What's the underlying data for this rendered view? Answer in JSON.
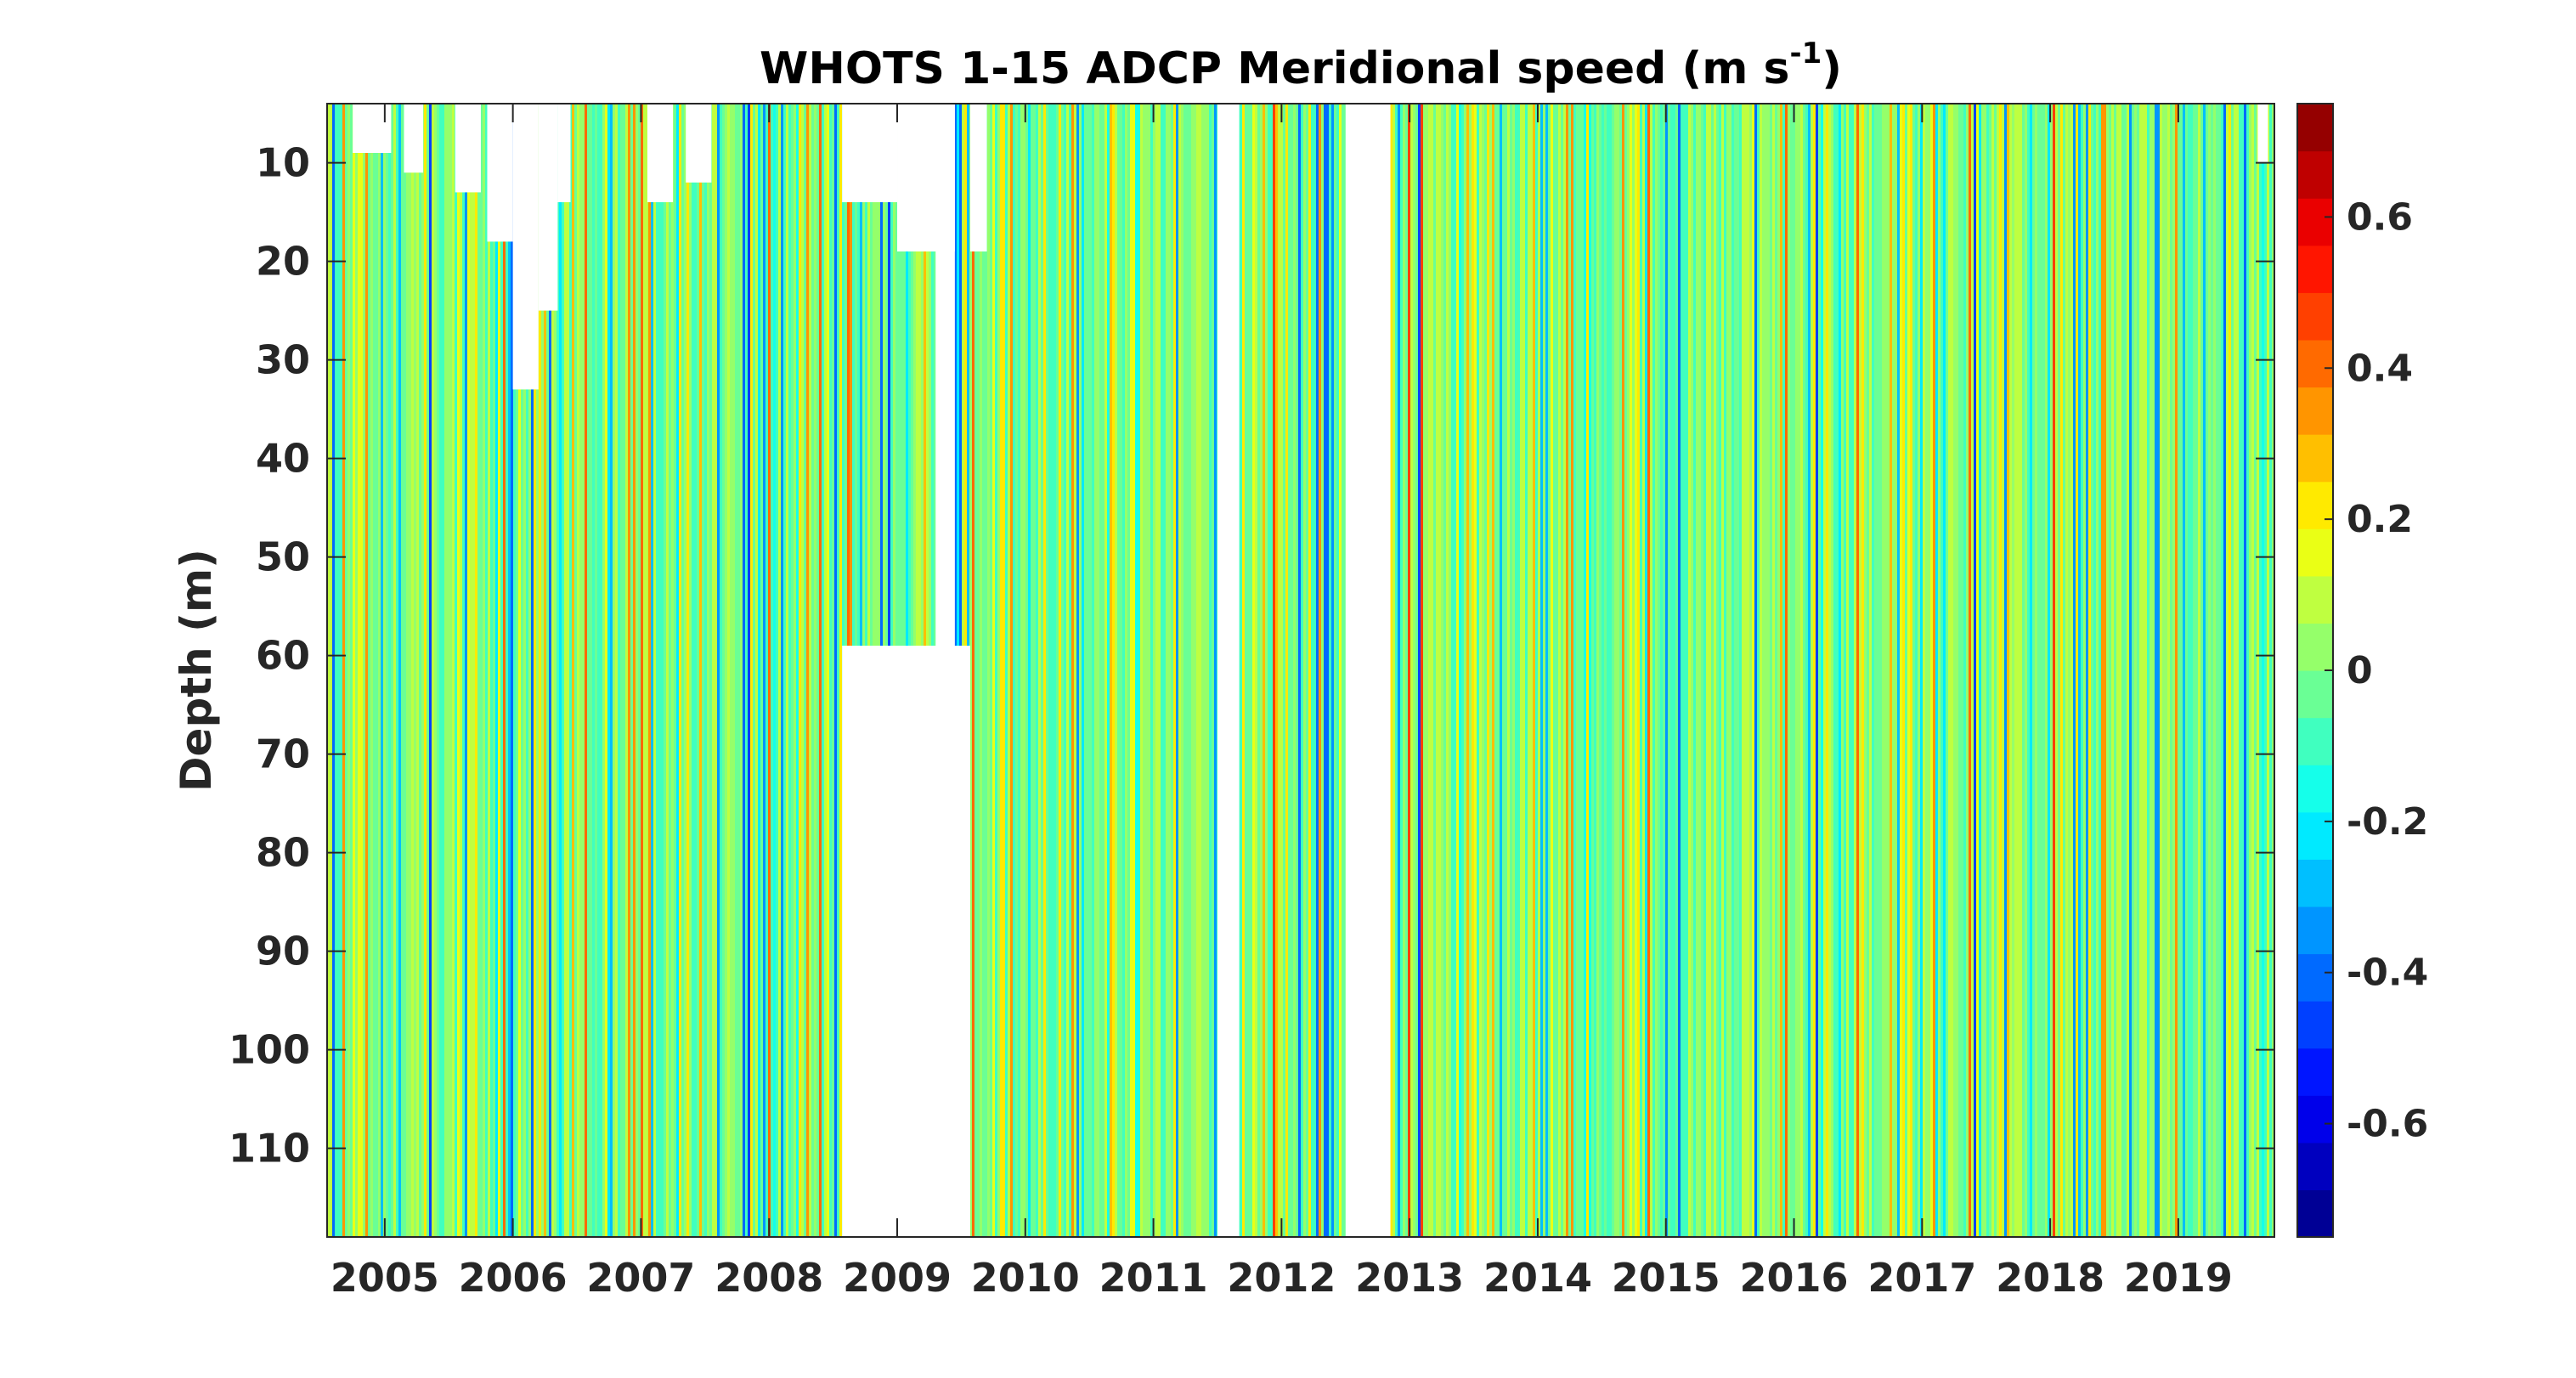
{
  "chart_data": {
    "type": "heatmap",
    "title_main": "WHOTS 1-15 ADCP Meridional speed (m s",
    "title_sup": "-1",
    "title_end": ")",
    "ylabel": "Depth (m)",
    "xlabel": "",
    "x_range_years": [
      2004.55,
      2019.75
    ],
    "y_range_m": [
      4,
      119
    ],
    "y_reversed": true,
    "x_ticks": [
      "2005",
      "2006",
      "2007",
      "2008",
      "2009",
      "2010",
      "2011",
      "2012",
      "2013",
      "2014",
      "2015",
      "2016",
      "2017",
      "2018",
      "2019"
    ],
    "x_tick_values": [
      2005,
      2006,
      2007,
      2008,
      2009,
      2010,
      2011,
      2012,
      2013,
      2014,
      2015,
      2016,
      2017,
      2018,
      2019
    ],
    "y_ticks": [
      "10",
      "20",
      "30",
      "40",
      "50",
      "60",
      "70",
      "80",
      "90",
      "100",
      "110"
    ],
    "y_tick_values": [
      10,
      20,
      30,
      40,
      50,
      60,
      70,
      80,
      90,
      100,
      110
    ],
    "colorbar": {
      "colormap": "jet",
      "range": [
        -0.75,
        0.75
      ],
      "levels": 24,
      "ticks": [
        "0.6",
        "0.4",
        "0.2",
        "0",
        "-0.2",
        "-0.4",
        "-0.6"
      ],
      "tick_values": [
        0.6,
        0.4,
        0.2,
        0,
        -0.2,
        -0.4,
        -0.6
      ]
    },
    "data_gaps": [
      {
        "x_start": 2009.3,
        "x_end": 2009.45,
        "note": "no data"
      },
      {
        "x_start": 2011.5,
        "x_end": 2011.67,
        "note": "no data"
      },
      {
        "x_start": 2012.5,
        "x_end": 2012.85,
        "note": "no data"
      },
      {
        "x_start": 2008.57,
        "x_end": 2009.57,
        "depth_from": 59,
        "depth_to": 119,
        "note": "shallow deployment"
      }
    ],
    "grid": false
  }
}
